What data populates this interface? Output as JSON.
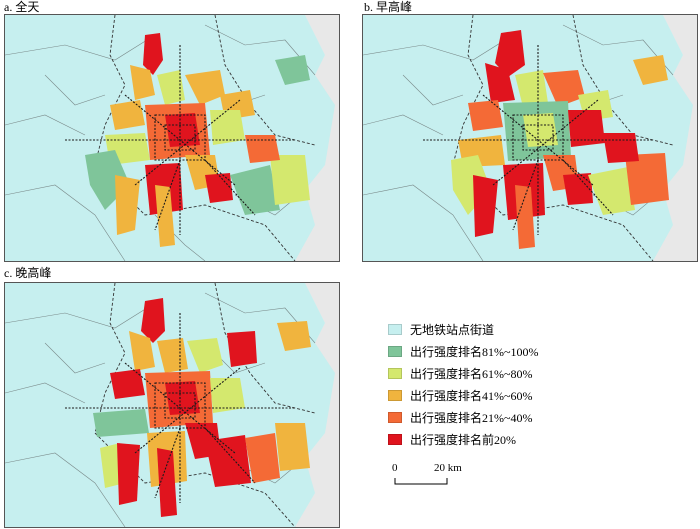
{
  "panels": [
    {
      "title": "a. 全天"
    },
    {
      "title": "b. 早高峰"
    },
    {
      "title": "c. 晚高峰"
    }
  ],
  "legend": {
    "items": [
      {
        "label": "无地铁站点街道",
        "color": "#c6efef"
      },
      {
        "label": "出行强度排名81%~100%",
        "color": "#7fc59a"
      },
      {
        "label": "出行强度排名61%~80%",
        "color": "#d4e86e"
      },
      {
        "label": "出行强度排名41%~60%",
        "color": "#f0b43e"
      },
      {
        "label": "出行强度排名21%~40%",
        "color": "#f46a36"
      },
      {
        "label": "出行强度排名前20%",
        "color": "#e0141e"
      }
    ]
  },
  "scale": {
    "start": "0",
    "end": "20 km"
  },
  "colors": {
    "background_region": "#e8e8e8",
    "no_station": "#c6efef",
    "boundary": "#6b6b6b",
    "metro_line": "#1a1a1a"
  }
}
